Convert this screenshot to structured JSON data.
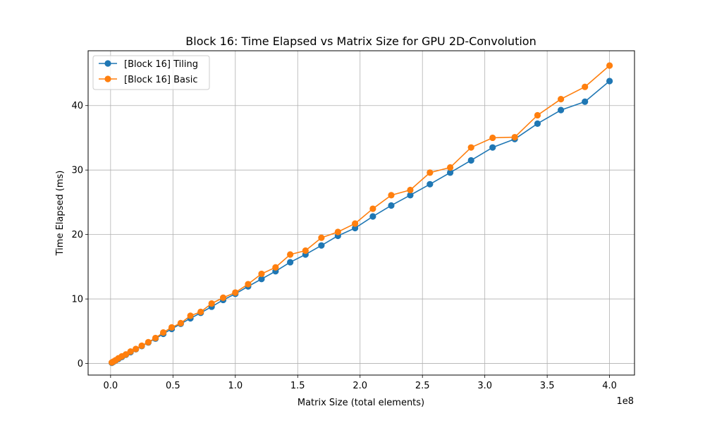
{
  "chart_data": {
    "type": "line",
    "title": "Block 16: Time Elapsed vs Matrix Size for GPU 2D-Convolution",
    "xlabel": "Matrix Size (total elements)",
    "ylabel": "Time Elapsed (ms)",
    "x_offset_label": "1e8",
    "xlim": [
      -0.18,
      4.2
    ],
    "ylim": [
      -1.8,
      48.5
    ],
    "x_ticks": [
      0.0,
      0.5,
      1.0,
      1.5,
      2.0,
      2.5,
      3.0,
      3.5,
      4.0
    ],
    "x_tick_labels": [
      "0.0",
      "0.5",
      "1.0",
      "1.5",
      "2.0",
      "2.5",
      "3.0",
      "3.5",
      "4.0"
    ],
    "y_ticks": [
      0,
      10,
      20,
      30,
      40
    ],
    "y_tick_labels": [
      "0",
      "10",
      "20",
      "30",
      "40"
    ],
    "grid": true,
    "legend_position": "top-left",
    "x": [
      0.01,
      0.0225,
      0.04,
      0.0625,
      0.09,
      0.1225,
      0.16,
      0.2025,
      0.25,
      0.3025,
      0.36,
      0.4225,
      0.49,
      0.5625,
      0.64,
      0.7225,
      0.81,
      0.9025,
      1.0,
      1.1025,
      1.21,
      1.3225,
      1.44,
      1.5625,
      1.69,
      1.8225,
      1.96,
      2.1025,
      2.25,
      2.4025,
      2.56,
      2.7225,
      2.89,
      3.0625,
      3.24,
      3.4225,
      3.61,
      3.8025,
      4.0
    ],
    "series": [
      {
        "name": "[Block 16] Tiling",
        "color": "#1f77b4",
        "values": [
          0.1,
          0.25,
          0.45,
          0.7,
          1.0,
          1.35,
          1.75,
          2.2,
          2.7,
          3.25,
          3.85,
          4.6,
          5.35,
          6.15,
          7.0,
          7.85,
          8.8,
          9.85,
          10.8,
          11.95,
          13.1,
          14.3,
          15.7,
          16.9,
          18.3,
          19.8,
          21.0,
          22.8,
          24.5,
          26.1,
          27.8,
          29.6,
          31.5,
          33.5,
          34.8,
          37.2,
          39.3,
          40.6,
          43.8
        ]
      },
      {
        "name": "[Block 16] Basic",
        "color": "#ff7f0e",
        "values": [
          0.15,
          0.3,
          0.5,
          0.8,
          1.1,
          1.4,
          1.85,
          2.25,
          2.75,
          3.3,
          3.95,
          4.8,
          5.6,
          6.25,
          7.4,
          8.0,
          9.3,
          10.2,
          11.0,
          12.3,
          13.9,
          14.9,
          16.9,
          17.5,
          19.5,
          20.4,
          21.7,
          24.0,
          26.1,
          26.9,
          29.6,
          30.4,
          33.5,
          35.0,
          35.1,
          38.5,
          41.0,
          42.9,
          46.2
        ]
      }
    ]
  }
}
